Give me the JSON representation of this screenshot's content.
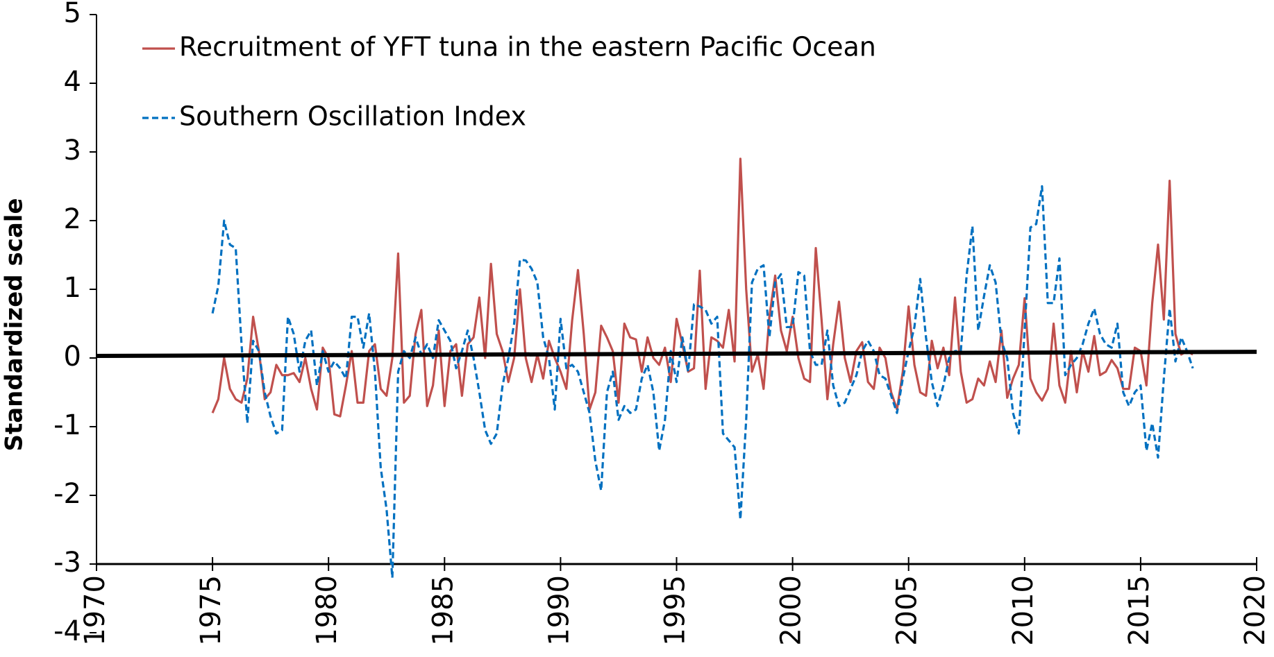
{
  "chart_data": {
    "type": "line",
    "y_label": "Standardized scale",
    "xlim": [
      1970,
      2020
    ],
    "xticks": [
      1970,
      1975,
      1980,
      1985,
      1990,
      1995,
      2000,
      2005,
      2010,
      2015,
      2020
    ],
    "ylim": [
      -4,
      5
    ],
    "yticks": [
      -4,
      -3,
      -2,
      -1,
      0,
      1,
      2,
      3,
      4,
      5
    ],
    "x_axis_crosses": -3,
    "legend": "upper left",
    "x": [
      1975,
      1975.25,
      1975.5,
      1975.75,
      1976,
      1976.25,
      1976.5,
      1976.75,
      1977,
      1977.25,
      1977.5,
      1977.75,
      1978,
      1978.25,
      1978.5,
      1978.75,
      1979,
      1979.25,
      1979.5,
      1979.75,
      1980,
      1980.25,
      1980.5,
      1980.75,
      1981,
      1981.25,
      1981.5,
      1981.75,
      1982,
      1982.25,
      1982.5,
      1982.75,
      1983,
      1983.25,
      1983.5,
      1983.75,
      1984,
      1984.25,
      1984.5,
      1984.75,
      1985,
      1985.25,
      1985.5,
      1985.75,
      1986,
      1986.25,
      1986.5,
      1986.75,
      1987,
      1987.25,
      1987.5,
      1987.75,
      1988,
      1988.25,
      1988.5,
      1988.75,
      1989,
      1989.25,
      1989.5,
      1989.75,
      1990,
      1990.25,
      1990.5,
      1990.75,
      1991,
      1991.25,
      1991.5,
      1991.75,
      1992,
      1992.25,
      1992.5,
      1992.75,
      1993,
      1993.25,
      1993.5,
      1993.75,
      1994,
      1994.25,
      1994.5,
      1994.75,
      1995,
      1995.25,
      1995.5,
      1995.75,
      1996,
      1996.25,
      1996.5,
      1996.75,
      1997,
      1997.25,
      1997.5,
      1997.75,
      1998,
      1998.25,
      1998.5,
      1998.75,
      1999,
      1999.25,
      1999.5,
      1999.75,
      2000,
      2000.25,
      2000.5,
      2000.75,
      2001,
      2001.25,
      2001.5,
      2001.75,
      2002,
      2002.25,
      2002.5,
      2002.75,
      2003,
      2003.25,
      2003.5,
      2003.75,
      2004,
      2004.25,
      2004.5,
      2004.75,
      2005,
      2005.25,
      2005.5,
      2005.75,
      2006,
      2006.25,
      2006.5,
      2006.75,
      2007,
      2007.25,
      2007.5,
      2007.75,
      2008,
      2008.25,
      2008.5,
      2008.75,
      2009,
      2009.25,
      2009.5,
      2009.75,
      2010,
      2010.25,
      2010.5,
      2010.75,
      2011,
      2011.25,
      2011.5,
      2011.75,
      2012,
      2012.25,
      2012.5,
      2012.75,
      2013,
      2013.25,
      2013.5,
      2013.75,
      2014,
      2014.25,
      2014.5,
      2014.75,
      2015,
      2015.25,
      2015.5,
      2015.75,
      2016,
      2016.25,
      2016.5,
      2016.75,
      2017,
      2017.25
    ],
    "series": [
      {
        "name": "Recruitment of YFT tuna in the eastern Pacific Ocean",
        "color": "#c0504d",
        "dash": false,
        "values": [
          -0.8,
          -0.6,
          0.0,
          -0.45,
          -0.6,
          -0.65,
          -0.3,
          0.6,
          0.1,
          -0.6,
          -0.5,
          -0.1,
          -0.25,
          -0.25,
          -0.22,
          -0.35,
          0.0,
          -0.45,
          -0.75,
          0.15,
          0.0,
          -0.82,
          -0.85,
          -0.4,
          0.1,
          -0.65,
          -0.65,
          0.1,
          0.2,
          -0.45,
          -0.55,
          0.0,
          1.52,
          -0.65,
          -0.55,
          0.35,
          0.7,
          -0.7,
          -0.4,
          0.4,
          -0.7,
          0.1,
          0.2,
          -0.55,
          0.2,
          0.3,
          0.88,
          0.0,
          1.37,
          0.35,
          0.1,
          -0.35,
          0.0,
          1.0,
          0.0,
          -0.35,
          0.05,
          -0.3,
          0.25,
          0.0,
          -0.2,
          -0.45,
          0.55,
          1.28,
          0.35,
          -0.75,
          -0.5,
          0.47,
          0.3,
          0.1,
          -0.65,
          0.5,
          0.3,
          0.27,
          -0.2,
          0.3,
          0.0,
          -0.1,
          0.15,
          -0.35,
          0.57,
          0.2,
          -0.2,
          -0.15,
          1.27,
          -0.45,
          0.3,
          0.25,
          0.15,
          0.7,
          -0.05,
          2.9,
          1.0,
          -0.2,
          0.05,
          -0.45,
          0.6,
          1.2,
          0.4,
          0.1,
          0.6,
          0.0,
          -0.3,
          -0.35,
          1.6,
          0.55,
          -0.6,
          0.2,
          0.82,
          0.0,
          -0.35,
          0.1,
          0.23,
          -0.35,
          -0.45,
          0.15,
          0.0,
          -0.5,
          -0.75,
          -0.2,
          0.75,
          -0.1,
          -0.5,
          -0.55,
          0.25,
          -0.15,
          0.15,
          -0.25,
          0.88,
          -0.2,
          -0.65,
          -0.6,
          -0.3,
          -0.4,
          -0.05,
          -0.35,
          0.4,
          -0.58,
          -0.3,
          -0.1,
          0.87,
          -0.3,
          -0.5,
          -0.62,
          -0.45,
          0.5,
          -0.4,
          -0.65,
          0.1,
          -0.5,
          0.1,
          -0.2,
          0.32,
          -0.25,
          -0.2,
          -0.03,
          -0.15,
          -0.45,
          -0.45,
          0.15,
          0.1,
          -0.4,
          0.8,
          1.65,
          0.56,
          2.58,
          0.35,
          0.05,
          0.1,
          0.05
        ]
      },
      {
        "name": "Southern Oscillation Index",
        "color": "#0070c0",
        "dash": true,
        "values": [
          0.65,
          1.05,
          2.0,
          1.65,
          1.6,
          0.2,
          -0.95,
          0.25,
          0.1,
          -0.5,
          -0.85,
          -1.1,
          -1.05,
          0.6,
          0.35,
          -0.2,
          0.25,
          0.4,
          -0.4,
          0.1,
          -0.2,
          -0.05,
          -0.15,
          -0.3,
          0.6,
          0.6,
          0.15,
          0.65,
          -0.2,
          -1.6,
          -2.2,
          -3.2,
          -0.2,
          0.1,
          0.0,
          0.3,
          0.05,
          0.2,
          0.0,
          0.55,
          0.4,
          0.25,
          -0.15,
          0.1,
          0.4,
          0.0,
          -0.5,
          -1.05,
          -1.25,
          -1.1,
          -0.4,
          0.0,
          0.5,
          1.43,
          1.42,
          1.3,
          1.1,
          0.3,
          0.0,
          -0.75,
          0.57,
          -0.15,
          -0.1,
          -0.2,
          -0.5,
          -0.8,
          -1.5,
          -1.93,
          -0.5,
          -0.2,
          -0.9,
          -0.7,
          -0.8,
          -0.75,
          -0.3,
          -0.1,
          -0.5,
          -1.35,
          -0.9,
          0.1,
          -0.35,
          0.3,
          -0.2,
          0.78,
          0.75,
          0.7,
          0.5,
          0.6,
          -1.1,
          -1.2,
          -1.3,
          -2.35,
          -0.9,
          1.1,
          1.3,
          1.35,
          0.3,
          1.1,
          1.22,
          0.45,
          0.45,
          1.25,
          1.2,
          0.1,
          -0.1,
          -0.1,
          0.4,
          -0.4,
          -0.7,
          -0.65,
          -0.45,
          -0.25,
          0.1,
          0.25,
          0.1,
          -0.25,
          -0.3,
          -0.55,
          -0.8,
          -0.3,
          0.1,
          0.45,
          1.15,
          0.3,
          -0.35,
          -0.7,
          -0.4,
          0.0,
          0.1,
          0.1,
          1.2,
          1.92,
          0.4,
          0.9,
          1.35,
          1.1,
          0.25,
          0.0,
          -0.8,
          -1.1,
          0.4,
          1.9,
          1.95,
          2.5,
          0.8,
          0.8,
          1.45,
          -0.25,
          -0.1,
          0.0,
          0.2,
          0.5,
          0.72,
          0.35,
          0.2,
          0.15,
          0.5,
          -0.5,
          -0.7,
          -0.5,
          -0.4,
          -1.35,
          -0.95,
          -1.45,
          -0.3,
          0.72,
          -0.05,
          0.3,
          0.1,
          -0.15
        ]
      }
    ],
    "trend_line": {
      "x": [
        1970,
        2020
      ],
      "y": [
        0.03,
        0.09
      ],
      "color": "#000000"
    }
  }
}
